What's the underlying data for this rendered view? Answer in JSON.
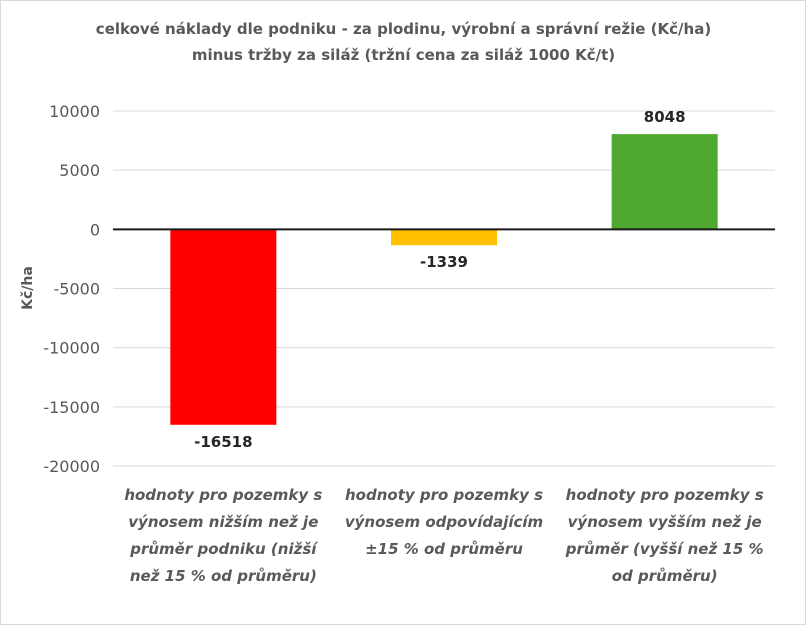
{
  "chart_data": {
    "type": "bar",
    "title": "celkové náklady dle podniku - za plodinu, výrobní a správní režie  (Kč/ha)",
    "subtitle": "minus tržby za siláž (tržní  cena za siláž 1000 Kč/t)",
    "ylabel": "Kč/ha",
    "xlabel": "",
    "ylim": [
      -20000,
      10000
    ],
    "yticks": [
      10000,
      5000,
      0,
      -5000,
      -10000,
      -15000,
      -20000
    ],
    "grid": true,
    "legend": "none",
    "categories": [
      "hodnoty pro pozemky s výnosem nižším než je průměr podniku (nižší než 15 % od průměru)",
      "hodnoty pro pozemky s výnosem odpovídajícím ±15 % od průměru",
      "hodnoty pro pozemky s výnosem vyšším než je průměr (vyšší než 15 % od průměru)"
    ],
    "values": [
      -16518,
      -1339,
      8048
    ],
    "colors": [
      "#ff0000",
      "#ffc000",
      "#4ea72e"
    ]
  }
}
